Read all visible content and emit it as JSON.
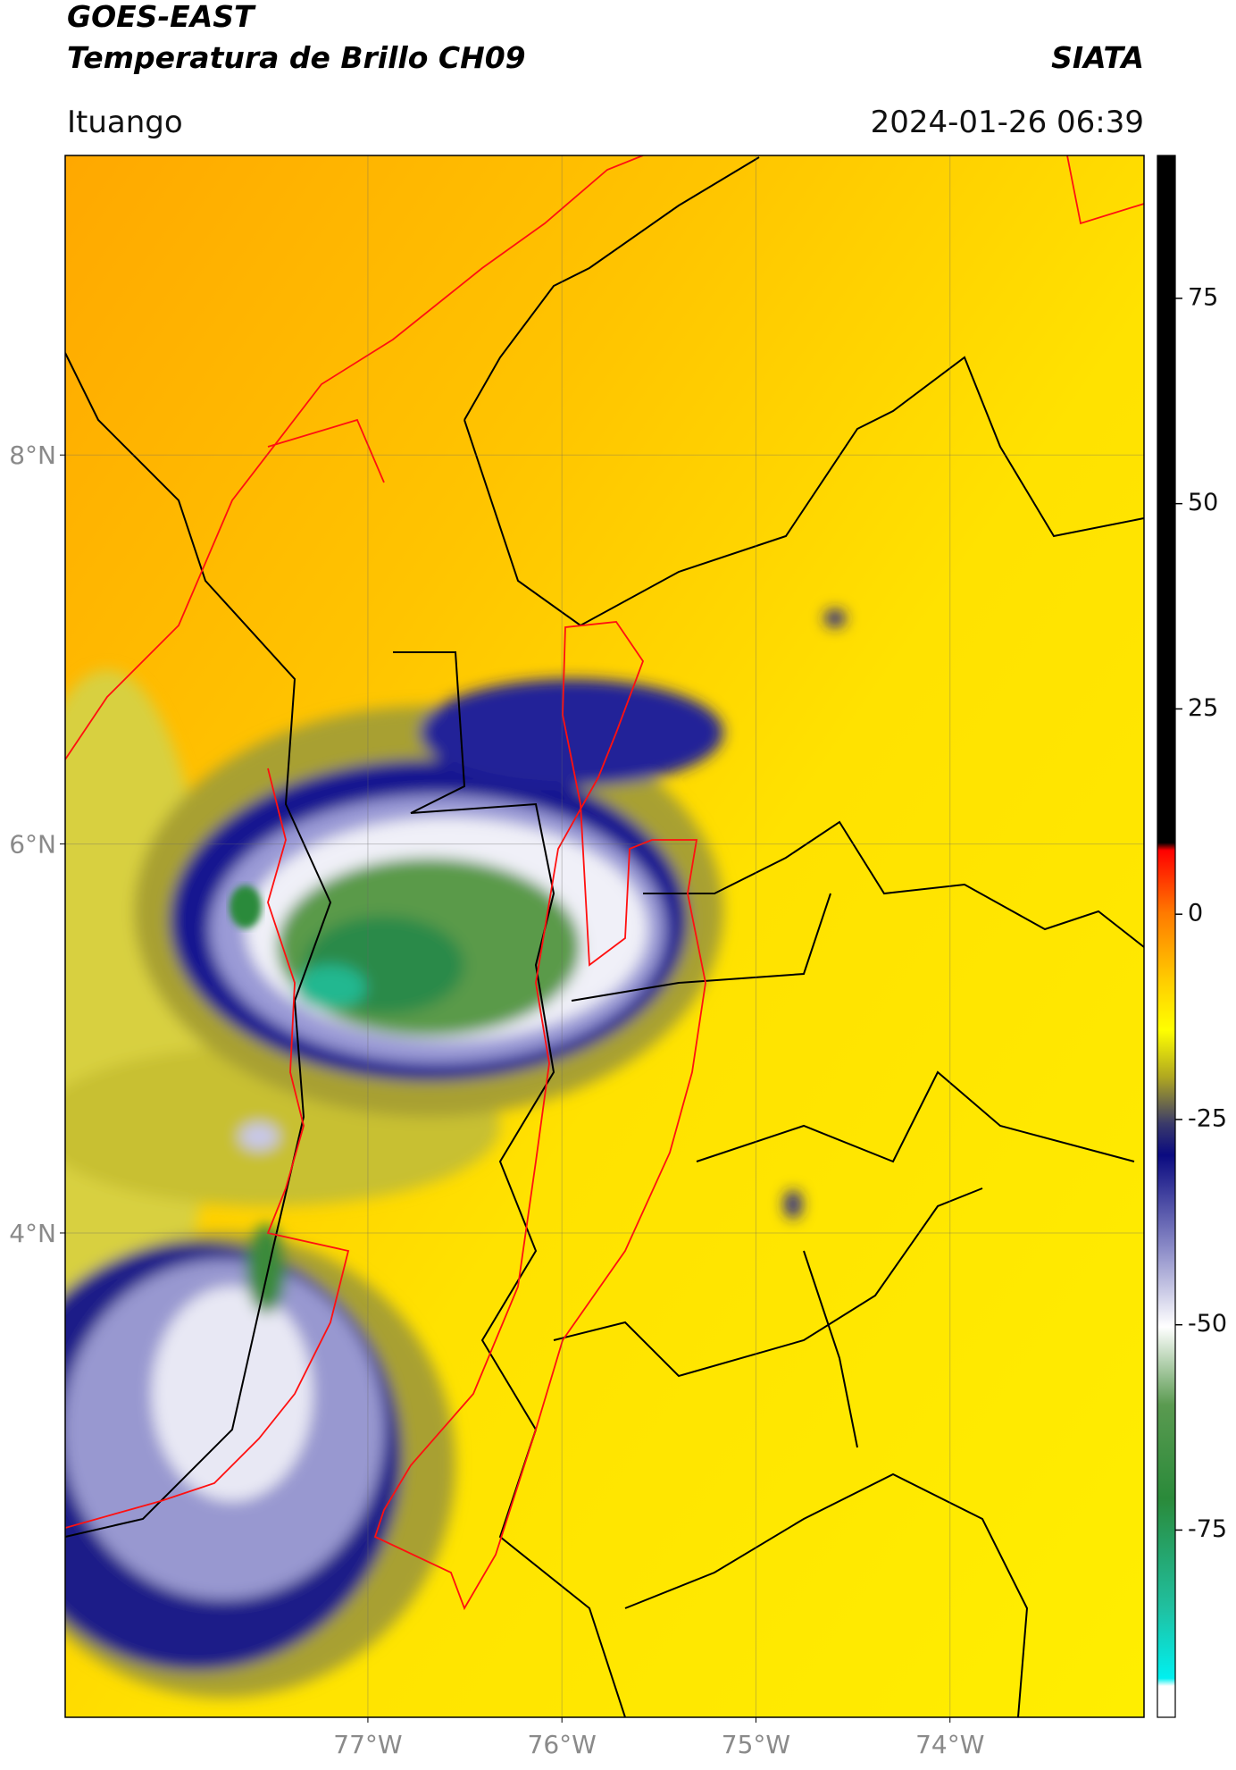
{
  "header": {
    "title": "GOES-EAST",
    "subtitle": "Temperatura de Brillo CH09",
    "brand": "SIATA",
    "location": "Ituango",
    "datetime": "2024-01-26 06:39"
  },
  "chart_data": {
    "type": "map",
    "xlim": [
      -78.56,
      -73.0
    ],
    "ylim": [
      1.51,
      9.54
    ],
    "xticks": [
      {
        "value": -77,
        "label": "77°W"
      },
      {
        "value": -76,
        "label": "76°W"
      },
      {
        "value": -75,
        "label": "75°W"
      },
      {
        "value": -74,
        "label": "74°W"
      }
    ],
    "yticks": [
      {
        "value": 8,
        "label": "8°N"
      },
      {
        "value": 6,
        "label": "6°N"
      },
      {
        "value": 4,
        "label": "4°N"
      }
    ],
    "grid": true,
    "colorbar": {
      "lim": [
        -97.8,
        92.4
      ],
      "ticks": [
        75,
        50,
        25,
        0,
        -25,
        -50,
        -75
      ]
    }
  }
}
